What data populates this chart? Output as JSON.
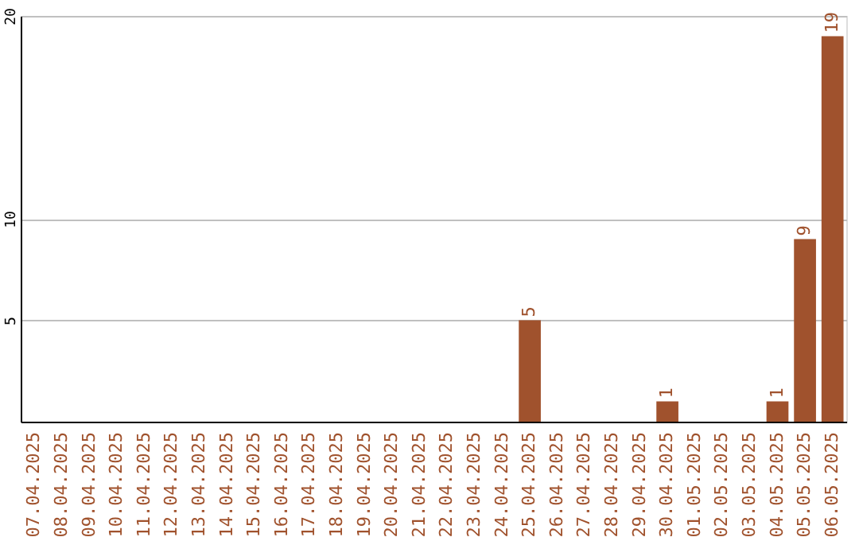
{
  "chart_data": {
    "type": "bar",
    "categories": [
      "07.04.2025",
      "08.04.2025",
      "09.04.2025",
      "10.04.2025",
      "11.04.2025",
      "12.04.2025",
      "13.04.2025",
      "14.04.2025",
      "15.04.2025",
      "16.04.2025",
      "17.04.2025",
      "18.04.2025",
      "19.04.2025",
      "20.04.2025",
      "21.04.2025",
      "22.04.2025",
      "23.04.2025",
      "24.04.2025",
      "25.04.2025",
      "26.04.2025",
      "27.04.2025",
      "28.04.2025",
      "29.04.2025",
      "30.04.2025",
      "01.05.2025",
      "02.05.2025",
      "03.05.2025",
      "04.05.2025",
      "05.05.2025",
      "06.05.2025"
    ],
    "values": [
      0,
      0,
      0,
      0,
      0,
      0,
      0,
      0,
      0,
      0,
      0,
      0,
      0,
      0,
      0,
      0,
      0,
      0,
      5,
      0,
      0,
      0,
      0,
      1,
      0,
      0,
      0,
      1,
      9,
      19
    ],
    "value_labels": [
      null,
      null,
      null,
      null,
      null,
      null,
      null,
      null,
      null,
      null,
      null,
      null,
      null,
      null,
      null,
      null,
      null,
      null,
      "5",
      null,
      null,
      null,
      null,
      "1",
      null,
      null,
      null,
      "1",
      "9",
      "19"
    ],
    "color": "#a0522d",
    "ylim": [
      0,
      20
    ],
    "yticks": [
      5,
      10,
      20
    ],
    "grid": "y"
  }
}
